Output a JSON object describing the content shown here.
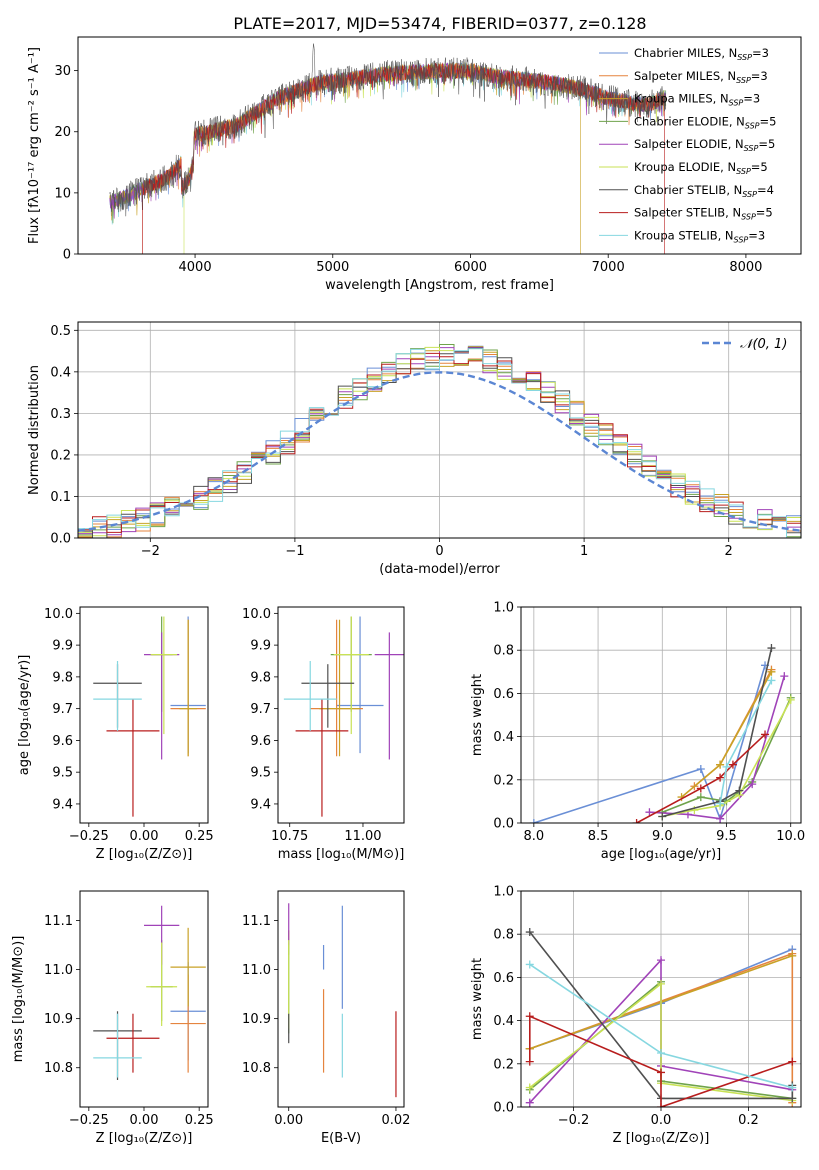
{
  "figure": {
    "title": "PLATE=2017, MJD=53474, FIBERID=0377, z=0.128"
  },
  "colors": {
    "series": [
      "#6a8fd6",
      "#e5843f",
      "#c9a227",
      "#6fa34b",
      "#a043b8",
      "#c9e255",
      "#505050",
      "#b81d1d",
      "#86d7e0"
    ],
    "gauss_line": "#5b86d3",
    "grid": "#b0b0b0"
  },
  "chart_data": [
    {
      "id": "spectrum",
      "type": "line",
      "xlabel": "wavelength [Angstrom, rest frame]",
      "ylabel": "Flux [fλ10⁻¹⁷ erg cm⁻² s⁻¹ A⁻¹]",
      "xlim": [
        3150,
        8400
      ],
      "ylim": [
        0,
        35.5
      ],
      "xticks": [
        4000,
        5000,
        6000,
        7000,
        8000
      ],
      "yticks": [
        0,
        10,
        20,
        30
      ],
      "legend_position": "top-right",
      "legend": [
        {
          "base": "Chabrier MILES, N",
          "sub": "SSP",
          "tail": "=3"
        },
        {
          "base": "Salpeter MILES, N",
          "sub": "SSP",
          "tail": "=3"
        },
        {
          "base": "Kroupa MILES, N",
          "sub": "SSP",
          "tail": "=3"
        },
        {
          "base": "Chabrier ELODIE, N",
          "sub": "SSP",
          "tail": "=5"
        },
        {
          "base": "Salpeter ELODIE, N",
          "sub": "SSP",
          "tail": "=5"
        },
        {
          "base": "Kroupa ELODIE, N",
          "sub": "SSP",
          "tail": "=5"
        },
        {
          "base": "Chabrier STELIB, N",
          "sub": "SSP",
          "tail": "=4"
        },
        {
          "base": "Salpeter STELIB, N",
          "sub": "SSP",
          "tail": "=5"
        },
        {
          "base": "Kroupa STELIB, N",
          "sub": "SSP",
          "tail": "=3"
        }
      ],
      "continuum": {
        "x": [
          3400,
          3600,
          3800,
          3950,
          4000,
          4300,
          4600,
          4900,
          5100,
          5400,
          5800,
          6000,
          6200,
          6400,
          6600,
          6800,
          7000,
          7200,
          7300,
          7400
        ],
        "y": [
          8.5,
          10.5,
          12.5,
          16,
          19.5,
          21,
          25.5,
          28,
          28.5,
          29.5,
          30,
          30,
          29,
          28.5,
          28,
          27,
          25.5,
          24.5,
          24.5,
          25.5
        ]
      },
      "xrange": [
        3380,
        7420
      ],
      "cutoffs": [
        {
          "series": 1,
          "x": 3620,
          "side": "blue"
        },
        {
          "series": 7,
          "x": 3620,
          "side": "blue"
        },
        {
          "series": 5,
          "x": 3920,
          "side": "blue"
        },
        {
          "series": 2,
          "x": 6800,
          "side": "red"
        },
        {
          "series": 1,
          "x": 7420,
          "side": "red"
        },
        {
          "series": 7,
          "x": 7410,
          "side": "red"
        }
      ]
    },
    {
      "id": "residuals",
      "type": "histogram",
      "xlabel": "(data-model)/error",
      "ylabel": "Normed distribution",
      "xlim": [
        -2.5,
        2.5
      ],
      "ylim": [
        0,
        0.52
      ],
      "xticks": [
        -2,
        -1,
        0,
        1,
        2
      ],
      "yticks": [
        0.0,
        0.1,
        0.2,
        0.3,
        0.4,
        0.5
      ],
      "bin_width": 0.1,
      "legend_position": "top-right",
      "gaussian_label": "𝒩(0, 1)"
    },
    {
      "id": "age-vs-Z",
      "type": "errorbar",
      "xlabel": "Z [log₁₀(Z/Z⊙)]",
      "ylabel": "age  [log₁₀(age/yr)]",
      "xlim": [
        -0.29,
        0.29
      ],
      "ylim": [
        9.34,
        10.02
      ],
      "xticks": [
        -0.25,
        0.0,
        0.25
      ],
      "yticks": [
        9.4,
        9.5,
        9.6,
        9.7,
        9.8,
        9.9,
        10.0
      ],
      "points": [
        {
          "x": 0.2,
          "y": 9.71,
          "xerr": 0.08,
          "yerr": [
            0.15,
            0.28
          ]
        },
        {
          "x": 0.2,
          "y": 9.7,
          "xerr": 0.08,
          "yerr": [
            0.15,
            0.28
          ]
        },
        {
          "x": 0.2,
          "y": 9.7,
          "xerr": 0.04,
          "yerr": [
            0.15,
            0.28
          ]
        },
        {
          "x": 0.08,
          "y": 9.87,
          "xerr": 0.05,
          "yerr": [
            0.18,
            0.12
          ]
        },
        {
          "x": 0.08,
          "y": 9.87,
          "xerr": 0.08,
          "yerr": [
            0.33,
            0.07
          ]
        },
        {
          "x": 0.09,
          "y": 9.87,
          "xerr": 0.06,
          "yerr": [
            0.25,
            0.12
          ]
        },
        {
          "x": -0.12,
          "y": 9.78,
          "xerr": 0.11,
          "yerr": [
            0.14,
            0.06
          ]
        },
        {
          "x": -0.05,
          "y": 9.63,
          "xerr": 0.12,
          "yerr": [
            0.27,
            0.1
          ]
        },
        {
          "x": -0.12,
          "y": 9.73,
          "xerr": 0.11,
          "yerr": [
            0.1,
            0.12
          ]
        }
      ]
    },
    {
      "id": "age-vs-mass",
      "type": "errorbar",
      "xlabel": "mass [log₁₀(M/M⊙)]",
      "ylabel": "",
      "xlim": [
        10.71,
        11.14
      ],
      "ylim": [
        9.34,
        10.02
      ],
      "xticks": [
        10.75,
        11.0
      ],
      "yticks": [
        9.4,
        9.5,
        9.6,
        9.7,
        9.8,
        9.9,
        10.0
      ],
      "points": [
        {
          "x": 10.99,
          "y": 9.71,
          "xerr": 0.08,
          "yerr": [
            0.15,
            0.28
          ]
        },
        {
          "x": 10.91,
          "y": 9.7,
          "xerr": 0.09,
          "yerr": [
            0.15,
            0.28
          ]
        },
        {
          "x": 10.92,
          "y": 9.7,
          "xerr": 0.07,
          "yerr": [
            0.15,
            0.28
          ]
        },
        {
          "x": 10.96,
          "y": 9.87,
          "xerr": 0.07,
          "yerr": [
            0.18,
            0.12
          ]
        },
        {
          "x": 11.09,
          "y": 9.87,
          "xerr": 0.05,
          "yerr": [
            0.33,
            0.07
          ]
        },
        {
          "x": 10.96,
          "y": 9.87,
          "xerr": 0.06,
          "yerr": [
            0.25,
            0.12
          ]
        },
        {
          "x": 10.88,
          "y": 9.78,
          "xerr": 0.09,
          "yerr": [
            0.14,
            0.06
          ]
        },
        {
          "x": 10.86,
          "y": 9.63,
          "xerr": 0.09,
          "yerr": [
            0.27,
            0.1
          ]
        },
        {
          "x": 10.82,
          "y": 9.73,
          "xerr": 0.09,
          "yerr": [
            0.1,
            0.12
          ]
        }
      ]
    },
    {
      "id": "weight-vs-age",
      "type": "line",
      "xlabel": "age  [log₁₀(age/yr)]",
      "ylabel": "mass weight",
      "xlim": [
        7.9,
        10.08
      ],
      "ylim": [
        0,
        1.0
      ],
      "xticks": [
        8.0,
        8.5,
        9.0,
        9.5,
        10.0
      ],
      "yticks": [
        0.0,
        0.2,
        0.4,
        0.6,
        0.8,
        1.0
      ],
      "series": [
        {
          "x": [
            8.0,
            9.3,
            9.45,
            9.8
          ],
          "y": [
            0.0,
            0.25,
            0.02,
            0.73
          ]
        },
        {
          "x": [
            9.25,
            9.45,
            9.85
          ],
          "y": [
            0.17,
            0.27,
            0.71
          ]
        },
        {
          "x": [
            9.15,
            9.45,
            9.85
          ],
          "y": [
            0.12,
            0.27,
            0.7
          ]
        },
        {
          "x": [
            9.0,
            9.3,
            9.5,
            9.7,
            10.0
          ],
          "y": [
            0.05,
            0.12,
            0.1,
            0.19,
            0.58
          ]
        },
        {
          "x": [
            8.9,
            9.2,
            9.45,
            9.7,
            9.95
          ],
          "y": [
            0.05,
            0.04,
            0.02,
            0.18,
            0.68
          ]
        },
        {
          "x": [
            9.0,
            9.25,
            9.45,
            9.6,
            10.0
          ],
          "y": [
            0.03,
            0.06,
            0.08,
            0.13,
            0.57
          ]
        },
        {
          "x": [
            9.0,
            9.45,
            9.6,
            9.85
          ],
          "y": [
            0.03,
            0.1,
            0.15,
            0.81
          ]
        },
        {
          "x": [
            8.8,
            9.3,
            9.45,
            9.55,
            9.8
          ],
          "y": [
            0.0,
            0.16,
            0.21,
            0.27,
            0.41
          ]
        },
        {
          "x": [
            9.45,
            9.5,
            9.85
          ],
          "y": [
            0.09,
            0.26,
            0.66
          ]
        }
      ]
    },
    {
      "id": "mass-vs-Z",
      "type": "errorbar",
      "xlabel": "Z [log₁₀(Z/Z⊙)]",
      "ylabel": "mass [log₁₀(M/M⊙)]",
      "xlim": [
        -0.29,
        0.29
      ],
      "ylim": [
        10.72,
        11.16
      ],
      "xticks": [
        -0.25,
        0.0,
        0.25
      ],
      "yticks": [
        10.8,
        10.9,
        11.0,
        11.1
      ],
      "points": [
        {
          "x": 0.2,
          "y": 10.915,
          "xerr": 0.08,
          "yerr": [
            0.1,
            0.1
          ]
        },
        {
          "x": 0.2,
          "y": 10.89,
          "xerr": 0.08,
          "yerr": [
            0.1,
            0.1
          ]
        },
        {
          "x": 0.2,
          "y": 11.005,
          "xerr": 0.08,
          "yerr": [
            0.08,
            0.08
          ]
        },
        {
          "x": 0.08,
          "y": 10.965,
          "xerr": 0.05,
          "yerr": [
            0.07,
            0.095
          ]
        },
        {
          "x": 0.08,
          "y": 11.09,
          "xerr": 0.08,
          "yerr": [
            0.08,
            0.04
          ]
        },
        {
          "x": 0.08,
          "y": 10.965,
          "xerr": 0.07,
          "yerr": [
            0.08,
            0.09
          ]
        },
        {
          "x": -0.12,
          "y": 10.875,
          "xerr": 0.11,
          "yerr": [
            0.1,
            0.04
          ]
        },
        {
          "x": -0.05,
          "y": 10.86,
          "xerr": 0.12,
          "yerr": [
            0.07,
            0.05
          ]
        },
        {
          "x": -0.12,
          "y": 10.82,
          "xerr": 0.11,
          "yerr": [
            0.04,
            0.09
          ]
        }
      ]
    },
    {
      "id": "mass-vs-ebv",
      "type": "errorbar",
      "xlabel": "E(B-V)",
      "ylabel": "",
      "xlim": [
        -0.002,
        0.0215
      ],
      "ylim": [
        10.72,
        11.16
      ],
      "xticks": [
        0.0,
        0.02
      ],
      "yticks": [
        10.8,
        10.9,
        11.0,
        11.1
      ],
      "points": [
        {
          "x": 0.0065,
          "y": 11.0,
          "xerr": 0.0,
          "yerr": [
            0.0,
            0.05
          ]
        },
        {
          "x": 0.0065,
          "y": 10.86,
          "xerr": 0.0,
          "yerr": [
            0.07,
            0.1
          ]
        },
        {
          "x": 0.0,
          "y": 11.03,
          "xerr": 0.0,
          "yerr": [
            0.0,
            0.05
          ]
        },
        {
          "x": 0.0,
          "y": 10.96,
          "xerr": 0.0,
          "yerr": [
            0.09,
            0.1
          ]
        },
        {
          "x": 0.0,
          "y": 11.08,
          "xerr": 0.0,
          "yerr": [
            0.03,
            0.055
          ]
        },
        {
          "x": 0.0,
          "y": 10.96,
          "xerr": 0.0,
          "yerr": [
            0.08,
            0.1
          ]
        },
        {
          "x": 0.0,
          "y": 10.87,
          "xerr": 0.0,
          "yerr": [
            0.02,
            0.04
          ]
        },
        {
          "x": 0.02,
          "y": 10.84,
          "xerr": 0.0,
          "yerr": [
            0.1,
            0.075
          ]
        },
        {
          "x": 0.01,
          "y": 10.84,
          "xerr": 0.0,
          "yerr": [
            0.06,
            0.07
          ]
        },
        {
          "x": 0.01,
          "y": 11.03,
          "xerr": 0.0,
          "yerr": [
            0.11,
            0.1
          ]
        }
      ]
    },
    {
      "id": "weight-vs-Z",
      "type": "line",
      "xlabel": "Z [log₁₀(Z/Z⊙)]",
      "ylabel": "mass weight",
      "xlim": [
        -0.32,
        0.32
      ],
      "ylim": [
        0,
        1.0
      ],
      "xticks": [
        -0.2,
        0.0,
        0.2
      ],
      "yticks": [
        0.0,
        0.2,
        0.4,
        0.6,
        0.8,
        1.0
      ],
      "series": [
        {
          "x": [
            -0.3,
            0.0,
            0.3
          ],
          "y": [
            0.27,
            0.48,
            0.73
          ]
        },
        {
          "x": [
            -0.3,
            0.3,
            0.3
          ],
          "y": [
            0.27,
            0.71,
            0.02
          ]
        },
        {
          "x": [
            -0.3,
            0.3
          ],
          "y": [
            0.27,
            0.7
          ]
        },
        {
          "x": [
            -0.3,
            0.0,
            0.0,
            0.3
          ],
          "y": [
            0.08,
            0.58,
            0.12,
            0.04
          ]
        },
        {
          "x": [
            -0.3,
            0.0,
            0.0,
            0.3
          ],
          "y": [
            0.02,
            0.68,
            0.19,
            0.08
          ]
        },
        {
          "x": [
            -0.3,
            0.0,
            0.0,
            0.3
          ],
          "y": [
            0.09,
            0.57,
            0.11,
            0.03
          ]
        },
        {
          "x": [
            -0.3,
            0.0,
            0.3,
            0.3
          ],
          "y": [
            0.81,
            0.04,
            0.04,
            0.1
          ]
        },
        {
          "x": [
            -0.3,
            -0.3,
            0.0,
            0.0,
            0.3
          ],
          "y": [
            0.21,
            0.42,
            0.16,
            0.0,
            0.21
          ]
        },
        {
          "x": [
            -0.3,
            0.0,
            0.3
          ],
          "y": [
            0.66,
            0.25,
            0.09
          ]
        }
      ]
    }
  ]
}
